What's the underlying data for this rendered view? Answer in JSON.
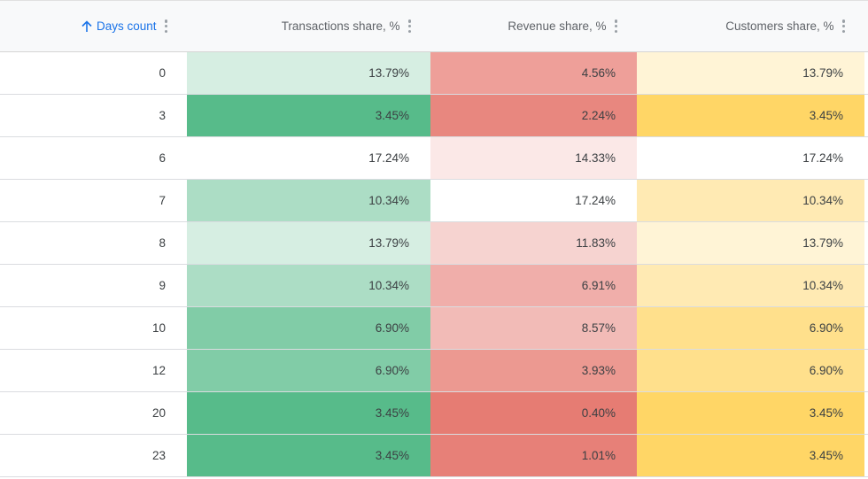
{
  "headers": {
    "days": "Days count",
    "transactions": "Transactions share, %",
    "revenue": "Revenue share, %",
    "customers": "Customers share, %"
  },
  "icons": {
    "sort": "arrow-up-icon",
    "menu": "more-vert-icon"
  },
  "colors": {
    "accent": "#1a73e8",
    "green_scale": "#57bb8a",
    "red_scale": "#e67c73",
    "yellow_scale": "#ffd666"
  },
  "rows": [
    {
      "days": "0",
      "transactions": "13.79%",
      "revenue": "4.56%",
      "customers": "13.79%",
      "tx_bg": "#d6eee2",
      "rv_bg": "#ee9f99",
      "cu_bg": "#fff4d6"
    },
    {
      "days": "3",
      "transactions": "3.45%",
      "revenue": "2.24%",
      "customers": "3.45%",
      "tx_bg": "#57bb8a",
      "rv_bg": "#e8877f",
      "cu_bg": "#ffd666"
    },
    {
      "days": "6",
      "transactions": "17.24%",
      "revenue": "14.33%",
      "customers": "17.24%",
      "tx_bg": "#ffffff",
      "rv_bg": "#fbe8e7",
      "cu_bg": "#ffffff"
    },
    {
      "days": "7",
      "transactions": "10.34%",
      "revenue": "17.24%",
      "customers": "10.34%",
      "tx_bg": "#acddc5",
      "rv_bg": "#ffffff",
      "cu_bg": "#ffeab3"
    },
    {
      "days": "8",
      "transactions": "13.79%",
      "revenue": "11.83%",
      "customers": "13.79%",
      "tx_bg": "#d6eee2",
      "rv_bg": "#f6d3d0",
      "cu_bg": "#fff4d6"
    },
    {
      "days": "9",
      "transactions": "10.34%",
      "revenue": "6.91%",
      "customers": "10.34%",
      "tx_bg": "#acddc5",
      "rv_bg": "#f0aeaa",
      "cu_bg": "#ffeab3"
    },
    {
      "days": "10",
      "transactions": "6.90%",
      "revenue": "8.57%",
      "customers": "6.90%",
      "tx_bg": "#81cca7",
      "rv_bg": "#f2bbb7",
      "cu_bg": "#ffe08c"
    },
    {
      "days": "12",
      "transactions": "6.90%",
      "revenue": "3.93%",
      "customers": "6.90%",
      "tx_bg": "#81cca7",
      "rv_bg": "#ec9991",
      "cu_bg": "#ffe08c"
    },
    {
      "days": "20",
      "transactions": "3.45%",
      "revenue": "0.40%",
      "customers": "3.45%",
      "tx_bg": "#57bb8a",
      "rv_bg": "#e67c73",
      "cu_bg": "#ffd666"
    },
    {
      "days": "23",
      "transactions": "3.45%",
      "revenue": "1.01%",
      "customers": "3.45%",
      "tx_bg": "#57bb8a",
      "rv_bg": "#e78078",
      "cu_bg": "#ffd666"
    }
  ]
}
